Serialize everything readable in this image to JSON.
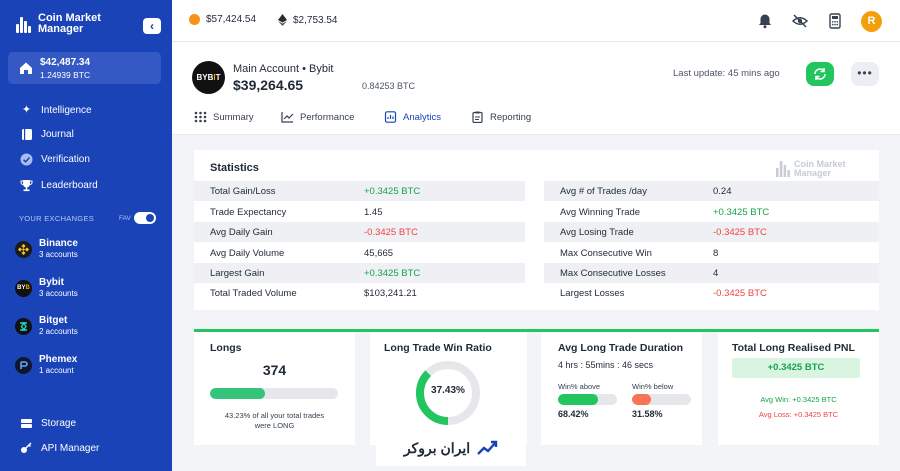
{
  "sidebar": {
    "brand_line1": "Coin Market",
    "brand_line2": "Manager",
    "collapse_icon": "chevron-left-icon",
    "balance_usd": "$42,487.34",
    "balance_btc": "1.24939 BTC",
    "nav": [
      {
        "label": "Intelligence",
        "icon": "sparkle-icon"
      },
      {
        "label": "Journal",
        "icon": "book-icon"
      },
      {
        "label": "Verification",
        "icon": "check-badge-icon"
      },
      {
        "label": "Leaderboard",
        "icon": "trophy-icon"
      }
    ],
    "exchanges_label": "YOUR EXCHANGES",
    "fav_label": "FAV",
    "exchanges": [
      {
        "name": "Binance",
        "accounts": "3 accounts"
      },
      {
        "name": "Bybit",
        "accounts": "3 accounts"
      },
      {
        "name": "Bitget",
        "accounts": "2 accounts"
      },
      {
        "name": "Phemex",
        "accounts": "1 account"
      }
    ],
    "footer_nav": [
      {
        "label": "Storage",
        "icon": "database-icon"
      },
      {
        "label": "API Manager",
        "icon": "key-icon"
      }
    ]
  },
  "topbar": {
    "btc_price": "$57,424.54",
    "eth_price": "$2,753.54",
    "avatar_initial": "R"
  },
  "account": {
    "logo_text": "BYB",
    "logo_accent": "I",
    "logo_tail": "T",
    "name": "Main Account • Bybit",
    "total": "$39,264.65",
    "btc": "0.84253 BTC",
    "last_update": "Last update: 45 mins ago"
  },
  "tabs": [
    {
      "label": "Summary",
      "active": false
    },
    {
      "label": "Performance",
      "active": false
    },
    {
      "label": "Analytics",
      "active": true
    },
    {
      "label": "Reporting",
      "active": false
    }
  ],
  "statistics": {
    "title": "Statistics",
    "watermark_line1": "Coin Market",
    "watermark_line2": "Manager",
    "left": [
      {
        "label": "Total Gain/Loss",
        "value": "+0.3425 BTC",
        "tone": "green"
      },
      {
        "label": "Trade Expectancy",
        "value": "1.45",
        "tone": "neutral"
      },
      {
        "label": "Avg Daily Gain",
        "value": "-0.3425 BTC",
        "tone": "red"
      },
      {
        "label": "Avg Daily Volume",
        "value": "45,665",
        "tone": "neutral"
      },
      {
        "label": "Largest Gain",
        "value": "+0.3425 BTC",
        "tone": "green"
      },
      {
        "label": "Total Traded Volume",
        "value": "$103,241.21",
        "tone": "neutral"
      }
    ],
    "right": [
      {
        "label": "Avg # of Trades /day",
        "value": "0.24",
        "tone": "neutral"
      },
      {
        "label": "Avg Winning Trade",
        "value": "+0.3425 BTC",
        "tone": "green"
      },
      {
        "label": "Avg Losing Trade",
        "value": "-0.3425 BTC",
        "tone": "red"
      },
      {
        "label": "Max Consecutive Win",
        "value": "8",
        "tone": "neutral"
      },
      {
        "label": "Max Consecutive Losses",
        "value": "4",
        "tone": "neutral"
      },
      {
        "label": "Largest Losses",
        "value": "-0.3425 BTC",
        "tone": "red"
      }
    ]
  },
  "longs": {
    "title": "Longs",
    "count": "374",
    "progress_pct": 43.23,
    "note_line1": "43.23% of all your total trades",
    "note_line2": "were LONG"
  },
  "win_ratio": {
    "title": "Long Trade Win Ratio",
    "value": "37.43%",
    "pct": 37.43
  },
  "duration": {
    "title": "Avg Long Trade Duration",
    "value": "4 hrs : 55mins : 46 secs",
    "above_label": "Win% above",
    "above_value": "68.42%",
    "above_pct": 68.42,
    "below_label": "Win% below",
    "below_value": "31.58%",
    "below_pct": 31.58
  },
  "pnl": {
    "title": "Total Long Realised PNL",
    "total": "+0.3425 BTC",
    "avg_win": "Avg Win: +0.3425 BTC",
    "avg_loss": "Avg Loss: +0.3425 BTC"
  },
  "watermark_logo": "ایران بروکر",
  "colors": {
    "sidebar": "#1a43b8",
    "green": "#16a34a",
    "red": "#ef4444",
    "accent_orange": "#f97356"
  }
}
